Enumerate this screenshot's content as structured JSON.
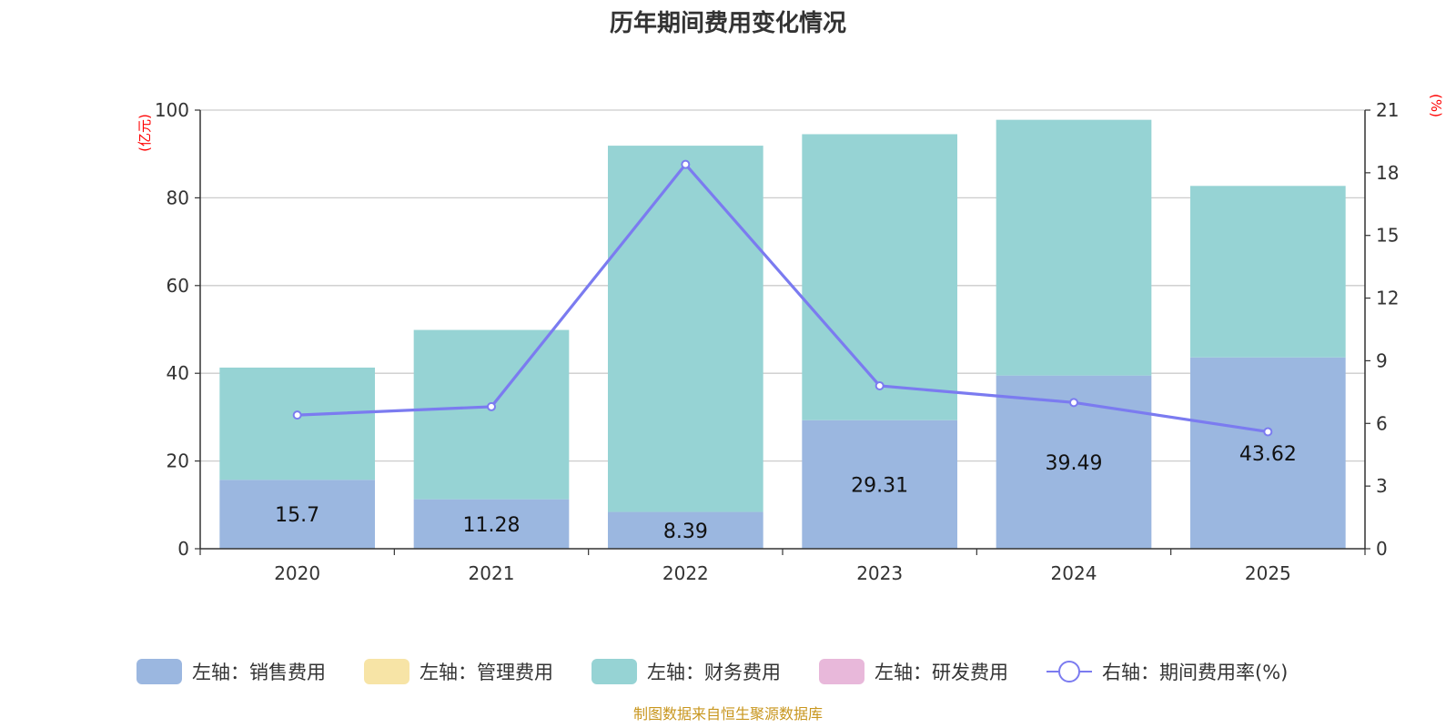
{
  "chart_data": {
    "type": "bar",
    "title": "历年期间费用变化情况",
    "categories": [
      "2020",
      "2021",
      "2022",
      "2023",
      "2024",
      "2025"
    ],
    "left_axis": {
      "unit": "(亿元)",
      "ylim": [
        0,
        100
      ],
      "ticks": [
        0,
        20,
        40,
        60,
        80,
        100
      ]
    },
    "right_axis": {
      "unit": "(%)",
      "ylim": [
        0,
        21
      ],
      "ticks": [
        0,
        3,
        6,
        9,
        12,
        15,
        18,
        21
      ]
    },
    "series": [
      {
        "name": "左轴：销售费用",
        "color": "#9bb7e0",
        "axis": "left",
        "stacked": true,
        "values": [
          15.7,
          11.28,
          8.39,
          29.31,
          39.49,
          43.62
        ],
        "labels": [
          "15.7",
          "11.28",
          "8.39",
          "29.31",
          "39.49",
          "43.62"
        ]
      },
      {
        "name": "左轴：管理费用",
        "color": "#f7e4a6",
        "axis": "left",
        "stacked": true,
        "values": [
          0,
          0,
          0,
          0,
          0,
          0
        ]
      },
      {
        "name": "左轴：财务费用",
        "color": "#96d3d4",
        "axis": "left",
        "stacked": true,
        "values": [
          25.6,
          38.6,
          83.5,
          65.2,
          58.3,
          39.1
        ]
      },
      {
        "name": "左轴：研发费用",
        "color": "#e8b8da",
        "axis": "left",
        "stacked": true,
        "values": [
          0,
          0,
          0,
          0,
          0,
          0
        ]
      },
      {
        "name": "右轴：期间费用率(%)",
        "color": "#7b7bf0",
        "axis": "right",
        "type": "line",
        "values": [
          6.4,
          6.8,
          18.4,
          7.8,
          7.0,
          5.6
        ]
      }
    ],
    "grid": true,
    "legend_position": "bottom",
    "source": "制图数据来自恒生聚源数据库"
  }
}
